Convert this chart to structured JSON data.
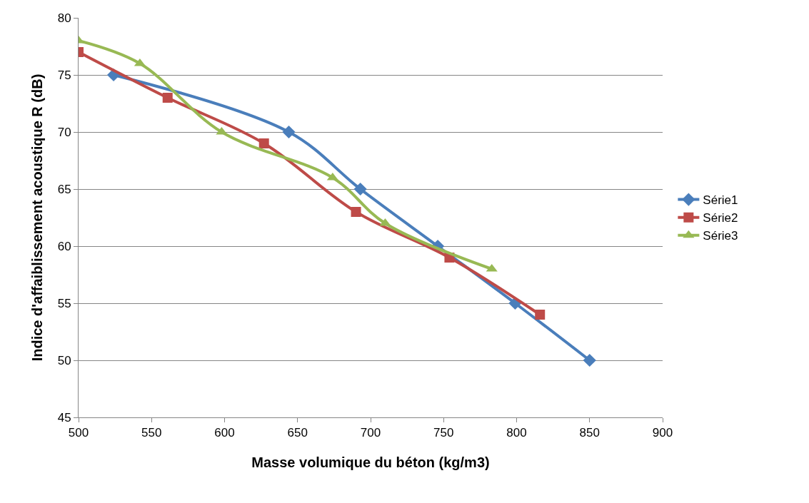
{
  "chart_data": {
    "type": "line",
    "xlabel": "Masse volumique du béton (kg/m3)",
    "ylabel": "Indice d'affaiblissement acoustique R (dB)",
    "xlim": [
      500,
      900
    ],
    "xticks": [
      500,
      550,
      600,
      650,
      700,
      750,
      800,
      850,
      900
    ],
    "ylim": [
      45,
      80
    ],
    "yticks": [
      45,
      50,
      55,
      60,
      65,
      70,
      75,
      80
    ],
    "grid": "y",
    "legend": "right",
    "series": [
      {
        "name": "Série1",
        "color": "#4a7ebb",
        "marker": "diamond",
        "x": [
          524,
          644,
          693,
          746,
          799,
          850
        ],
        "values": [
          75,
          70,
          65,
          60,
          55,
          50
        ]
      },
      {
        "name": "Série2",
        "color": "#be4b48",
        "marker": "square",
        "x": [
          500,
          561,
          627,
          690,
          754,
          816
        ],
        "values": [
          77,
          73,
          69,
          63,
          59,
          54
        ]
      },
      {
        "name": "Série3",
        "color": "#98b954",
        "marker": "triangle",
        "x": [
          500,
          542,
          598,
          674,
          710,
          783
        ],
        "values": [
          78,
          76,
          70,
          66,
          62,
          58
        ]
      }
    ]
  }
}
